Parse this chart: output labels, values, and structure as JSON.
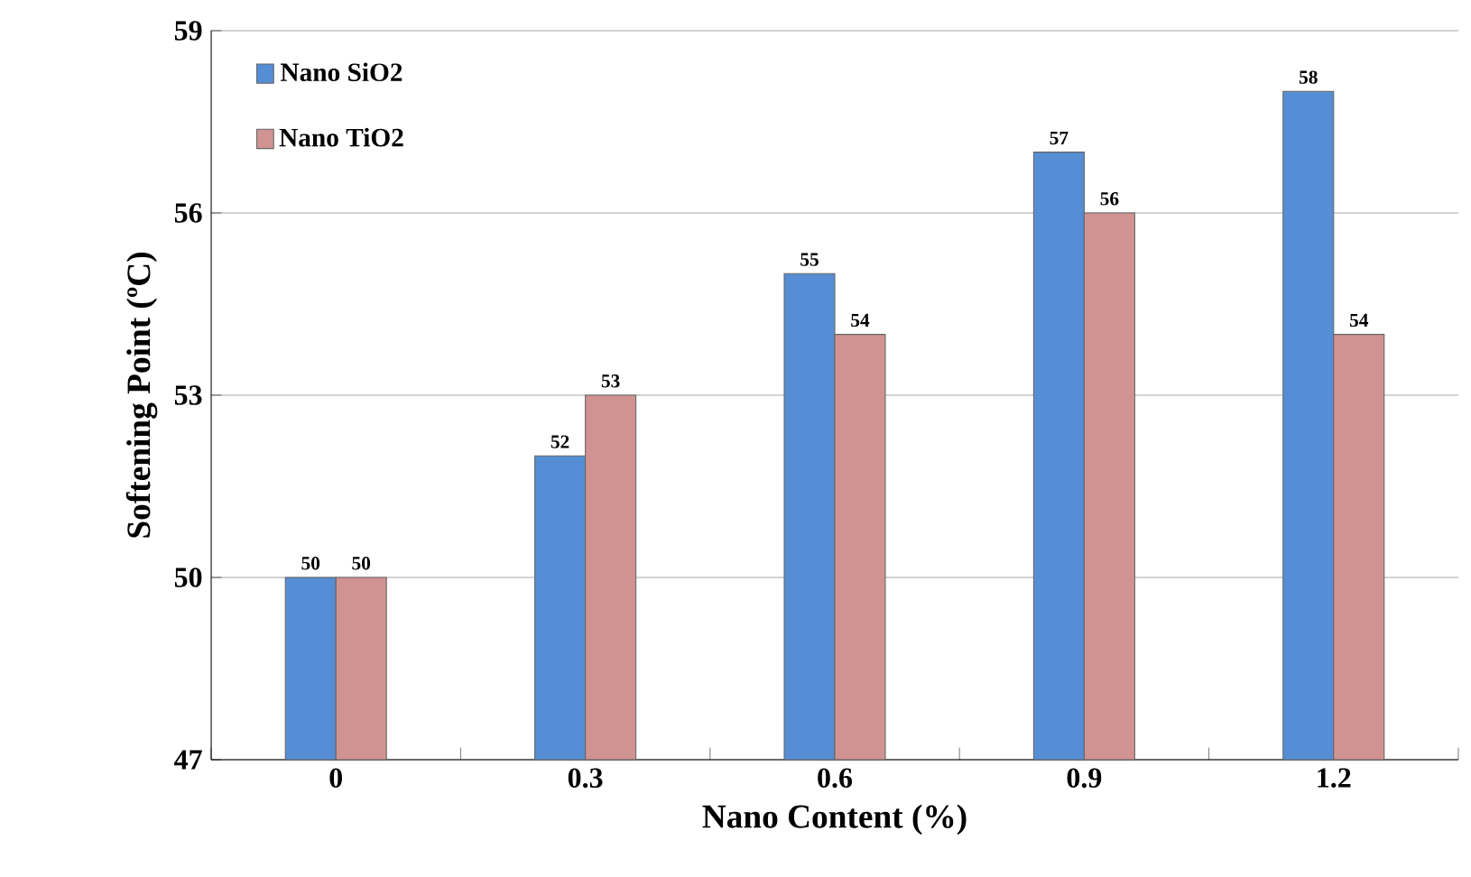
{
  "chart_data": {
    "type": "bar",
    "xlabel": "Nano Content (%)",
    "ylabel": "Softening Point (ºC)",
    "categories": [
      "0",
      "0.3",
      "0.6",
      "0.9",
      "1.2"
    ],
    "series": [
      {
        "name": "Nano SiO2",
        "color": "#558ed5",
        "values": [
          50,
          52,
          55,
          57,
          58
        ]
      },
      {
        "name": "Nano TiO2",
        "color": "#d09391",
        "values": [
          50,
          53,
          54,
          56,
          54
        ]
      }
    ],
    "ylim": [
      47,
      59
    ],
    "yticks": [
      47,
      50,
      53,
      56,
      59
    ],
    "grid": "y",
    "legend": "top left",
    "data_labels": true
  }
}
